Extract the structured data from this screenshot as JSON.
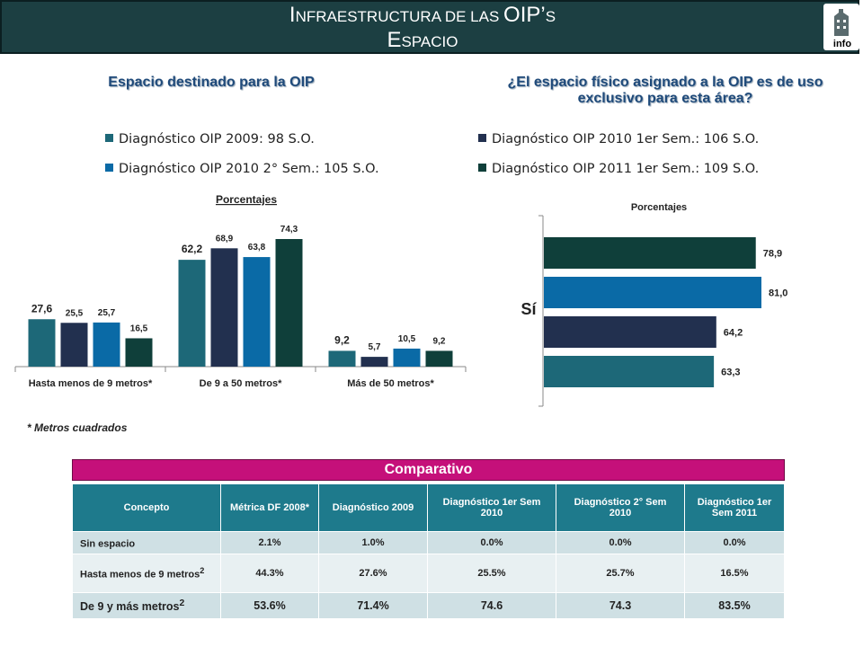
{
  "header": {
    "title_line1_part1": "I",
    "title_line1_part2": "NFRAESTRUCTURA DE LAS ",
    "title_line1_part3": "OIP’",
    "title_line1_part4": "S",
    "title_line2_part1": "E",
    "title_line2_part2": "SPACIO",
    "logo_text": "info"
  },
  "left_panel": {
    "subtitle": "Espacio destinado para la OIP",
    "legend": [
      {
        "label": "Diagnóstico OIP 2009: 98 S.O.",
        "color": "#1d6878"
      },
      {
        "label": "Diagnóstico OIP 2010 2° Sem.: 105 S.O.",
        "color": "#0a6aa6"
      }
    ],
    "footnote": "* Metros cuadrados"
  },
  "right_panel": {
    "subtitle_line1": "¿El espacio físico asignado a la OIP es de uso",
    "subtitle_line2": "exclusivo para esta área?",
    "legend": [
      {
        "label": "Diagnóstico OIP 2010 1er Sem.: 106 S.O.",
        "color": "#22304f"
      },
      {
        "label": "Diagnóstico OIP 2011 1er Sem.: 109 S.O.",
        "color": "#0f3f3a"
      }
    ]
  },
  "chart_data": [
    {
      "type": "bar",
      "title": "Porcentajes",
      "categories": [
        "Hasta menos de 9 metros*",
        "De 9 a 50 metros*",
        "Más de 50 metros*"
      ],
      "series": [
        {
          "name": "Diagnóstico OIP 2009: 98 S.O.",
          "color": "#1d6878",
          "values": [
            27.6,
            62.2,
            9.2
          ],
          "labels": [
            "27,6",
            "62,2",
            "9,2"
          ]
        },
        {
          "name": "Diagnóstico OIP 2010 1er Sem.: 106 S.O.",
          "color": "#22304f",
          "values": [
            25.5,
            68.9,
            5.7
          ],
          "labels": [
            "25,5",
            "68,9",
            "5,7"
          ]
        },
        {
          "name": "Diagnóstico OIP 2010 2° Sem.: 105 S.O.",
          "color": "#0a6aa6",
          "values": [
            25.7,
            63.8,
            10.5
          ],
          "labels": [
            "25,7",
            "63,8",
            "10,5"
          ]
        },
        {
          "name": "Diagnóstico OIP 2011 1er Sem.: 109 S.O.",
          "color": "#0f3f3a",
          "values": [
            16.5,
            74.3,
            9.2
          ],
          "labels": [
            "16,5",
            "74,3",
            "9,2"
          ]
        }
      ],
      "ylim": [
        0,
        80
      ],
      "grid": false
    },
    {
      "type": "bar",
      "orientation": "horizontal",
      "title": "Porcentajes",
      "categories": [
        "Sí"
      ],
      "series": [
        {
          "name": "Diagnóstico OIP 2011 1er Sem.: 109 S.O.",
          "color": "#0f3f3a",
          "values": [
            78.9
          ],
          "labels": [
            "78,9"
          ]
        },
        {
          "name": "Diagnóstico OIP 2010 2° Sem.: 105 S.O.",
          "color": "#0a6aa6",
          "values": [
            81.0
          ],
          "labels": [
            "81,0"
          ]
        },
        {
          "name": "Diagnóstico OIP 2010 1er Sem.: 106 S.O.",
          "color": "#22304f",
          "values": [
            64.2
          ],
          "labels": [
            "64,2"
          ]
        },
        {
          "name": "Diagnóstico OIP 2009: 98 S.O.",
          "color": "#1d6878",
          "values": [
            63.3
          ],
          "labels": [
            "63,3"
          ]
        }
      ],
      "xlim": [
        0,
        100
      ],
      "grid": false
    }
  ],
  "comparativo": {
    "title": "Comparativo",
    "headers": [
      "Concepto",
      "Métrica DF 2008*",
      "Diagnóstico 2009",
      "Diagnóstico 1er Sem 2010",
      "Diagnóstico 2° Sem 2010",
      "Diagnóstico 1er Sem 2011"
    ],
    "rows": [
      {
        "concept": "Sin espacio",
        "sup": "",
        "values": [
          "2.1%",
          "1.0%",
          "0.0%",
          "0.0%",
          "0.0%"
        ]
      },
      {
        "concept": "Hasta menos de 9 metros",
        "sup": "2",
        "values": [
          "44.3%",
          "27.6%",
          "25.5%",
          "25.7%",
          "16.5%"
        ]
      },
      {
        "concept": "De 9 y más metros",
        "sup": "2",
        "values": [
          "53.6%",
          "71.4%",
          "74.6",
          "74.3",
          "83.5%"
        ]
      }
    ]
  }
}
